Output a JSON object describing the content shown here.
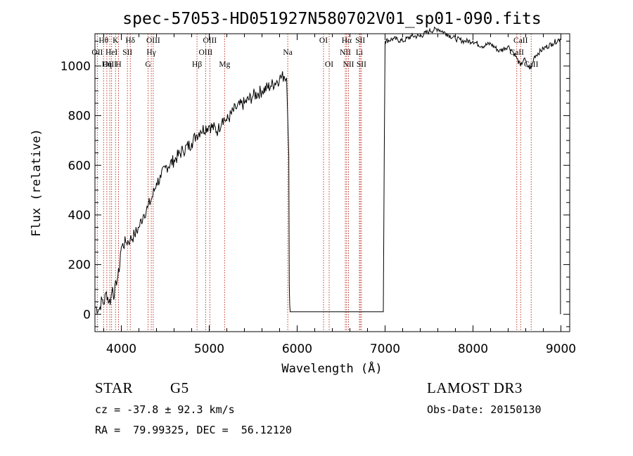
{
  "info": {
    "object_class": "STAR",
    "subclass": "G5",
    "survey": "LAMOST DR3",
    "redshift": "cz = -37.8 ± 92.3 km/s",
    "obs_date": "Obs-Date: 20150130",
    "coords": "RA =  79.99325, DEC =  56.12120"
  },
  "chart_data": {
    "type": "line",
    "title": "spec-57053-HD051927N580702V01_sp01-090.fits",
    "xlabel": "Wavelength (Å)",
    "ylabel": "Flux (relative)",
    "xlim": [
      3700,
      9100
    ],
    "ylim": [
      -70,
      1130
    ],
    "grid": false,
    "xticks": [
      4000,
      5000,
      6000,
      7000,
      8000,
      9000
    ],
    "yticks": [
      0,
      200,
      400,
      600,
      800,
      1000
    ],
    "series": [
      {
        "values": [
          [
            3700,
            30
          ],
          [
            3750,
            20
          ],
          [
            3780,
            60
          ],
          [
            3800,
            40
          ],
          [
            3830,
            90
          ],
          [
            3860,
            50
          ],
          [
            3880,
            60
          ],
          [
            3900,
            110
          ],
          [
            3920,
            70
          ],
          [
            3940,
            130
          ],
          [
            3960,
            150
          ],
          [
            3975,
            170
          ],
          [
            3990,
            250
          ],
          [
            4000,
            270
          ],
          [
            4050,
            290
          ],
          [
            4100,
            300
          ],
          [
            4150,
            320
          ],
          [
            4200,
            350
          ],
          [
            4250,
            400
          ],
          [
            4300,
            430
          ],
          [
            4350,
            470
          ],
          [
            4400,
            530
          ],
          [
            4450,
            550
          ],
          [
            4500,
            590
          ],
          [
            4600,
            620
          ],
          [
            4700,
            660
          ],
          [
            4800,
            690
          ],
          [
            4850,
            720
          ],
          [
            4900,
            740
          ],
          [
            5000,
            760
          ],
          [
            5100,
            740
          ],
          [
            5150,
            790
          ],
          [
            5200,
            780
          ],
          [
            5300,
            830
          ],
          [
            5400,
            850
          ],
          [
            5500,
            880
          ],
          [
            5600,
            900
          ],
          [
            5700,
            920
          ],
          [
            5800,
            950
          ],
          [
            5850,
            960
          ],
          [
            5880,
            950
          ],
          [
            5905,
            640
          ],
          [
            5910,
            120
          ],
          [
            5920,
            10
          ],
          [
            6500,
            10
          ],
          [
            6980,
            10
          ],
          [
            6990,
            630
          ],
          [
            7000,
            1100
          ],
          [
            7100,
            1110
          ],
          [
            7200,
            1100
          ],
          [
            7300,
            1120
          ],
          [
            7400,
            1120
          ],
          [
            7500,
            1140
          ],
          [
            7600,
            1150
          ],
          [
            7700,
            1130
          ],
          [
            7800,
            1110
          ],
          [
            7900,
            1100
          ],
          [
            8000,
            1100
          ],
          [
            8100,
            1080
          ],
          [
            8200,
            1090
          ],
          [
            8300,
            1060
          ],
          [
            8400,
            1080
          ],
          [
            8450,
            1060
          ],
          [
            8500,
            1030
          ],
          [
            8540,
            1000
          ],
          [
            8580,
            1030
          ],
          [
            8620,
            1000
          ],
          [
            8660,
            990
          ],
          [
            8700,
            1040
          ],
          [
            8800,
            1070
          ],
          [
            8900,
            1090
          ],
          [
            8990,
            1110
          ],
          [
            8995,
            0
          ]
        ]
      }
    ],
    "lines": [
      {
        "name": "Hθ",
        "wave": 3798,
        "row": 0
      },
      {
        "name": "OII",
        "wave": 3727,
        "row": 1
      },
      {
        "name": "OIII",
        "wave": 3869,
        "row": 2
      },
      {
        "name": "K",
        "wave": 3934,
        "row": 0
      },
      {
        "name": "HeI",
        "wave": 3889,
        "row": 1
      },
      {
        "name": "Hη",
        "wave": 3835,
        "row": 2
      },
      {
        "name": "Hδ",
        "wave": 4102,
        "row": 0
      },
      {
        "name": "SII",
        "wave": 4069,
        "row": 1
      },
      {
        "name": "H",
        "wave": 3968,
        "row": 2
      },
      {
        "name": "OIII",
        "wave": 4363,
        "row": 0
      },
      {
        "name": "Hγ",
        "wave": 4341,
        "row": 1
      },
      {
        "name": "G",
        "wave": 4304,
        "row": 2
      },
      {
        "name": "Hβ",
        "wave": 4861,
        "row": 2
      },
      {
        "name": "OIII",
        "wave": 5007,
        "row": 0
      },
      {
        "name": "OIII",
        "wave": 4959,
        "row": 1
      },
      {
        "name": "Mg",
        "wave": 5175,
        "row": 2
      },
      {
        "name": "Na",
        "wave": 5893,
        "row": 1
      },
      {
        "name": "OI",
        "wave": 6300,
        "row": 0
      },
      {
        "name": "OI",
        "wave": 6364,
        "row": 2
      },
      {
        "name": "Hα",
        "wave": 6563,
        "row": 0
      },
      {
        "name": "NII",
        "wave": 6548,
        "row": 1
      },
      {
        "name": "NII",
        "wave": 6584,
        "row": 2
      },
      {
        "name": "SII",
        "wave": 6717,
        "row": 0
      },
      {
        "name": "Li",
        "wave": 6708,
        "row": 1
      },
      {
        "name": "SII",
        "wave": 6731,
        "row": 2
      },
      {
        "name": "CaII",
        "wave": 8542,
        "row": 0
      },
      {
        "name": "CaII",
        "wave": 8498,
        "row": 1
      },
      {
        "name": "CaII",
        "wave": 8662,
        "row": 2
      }
    ]
  }
}
